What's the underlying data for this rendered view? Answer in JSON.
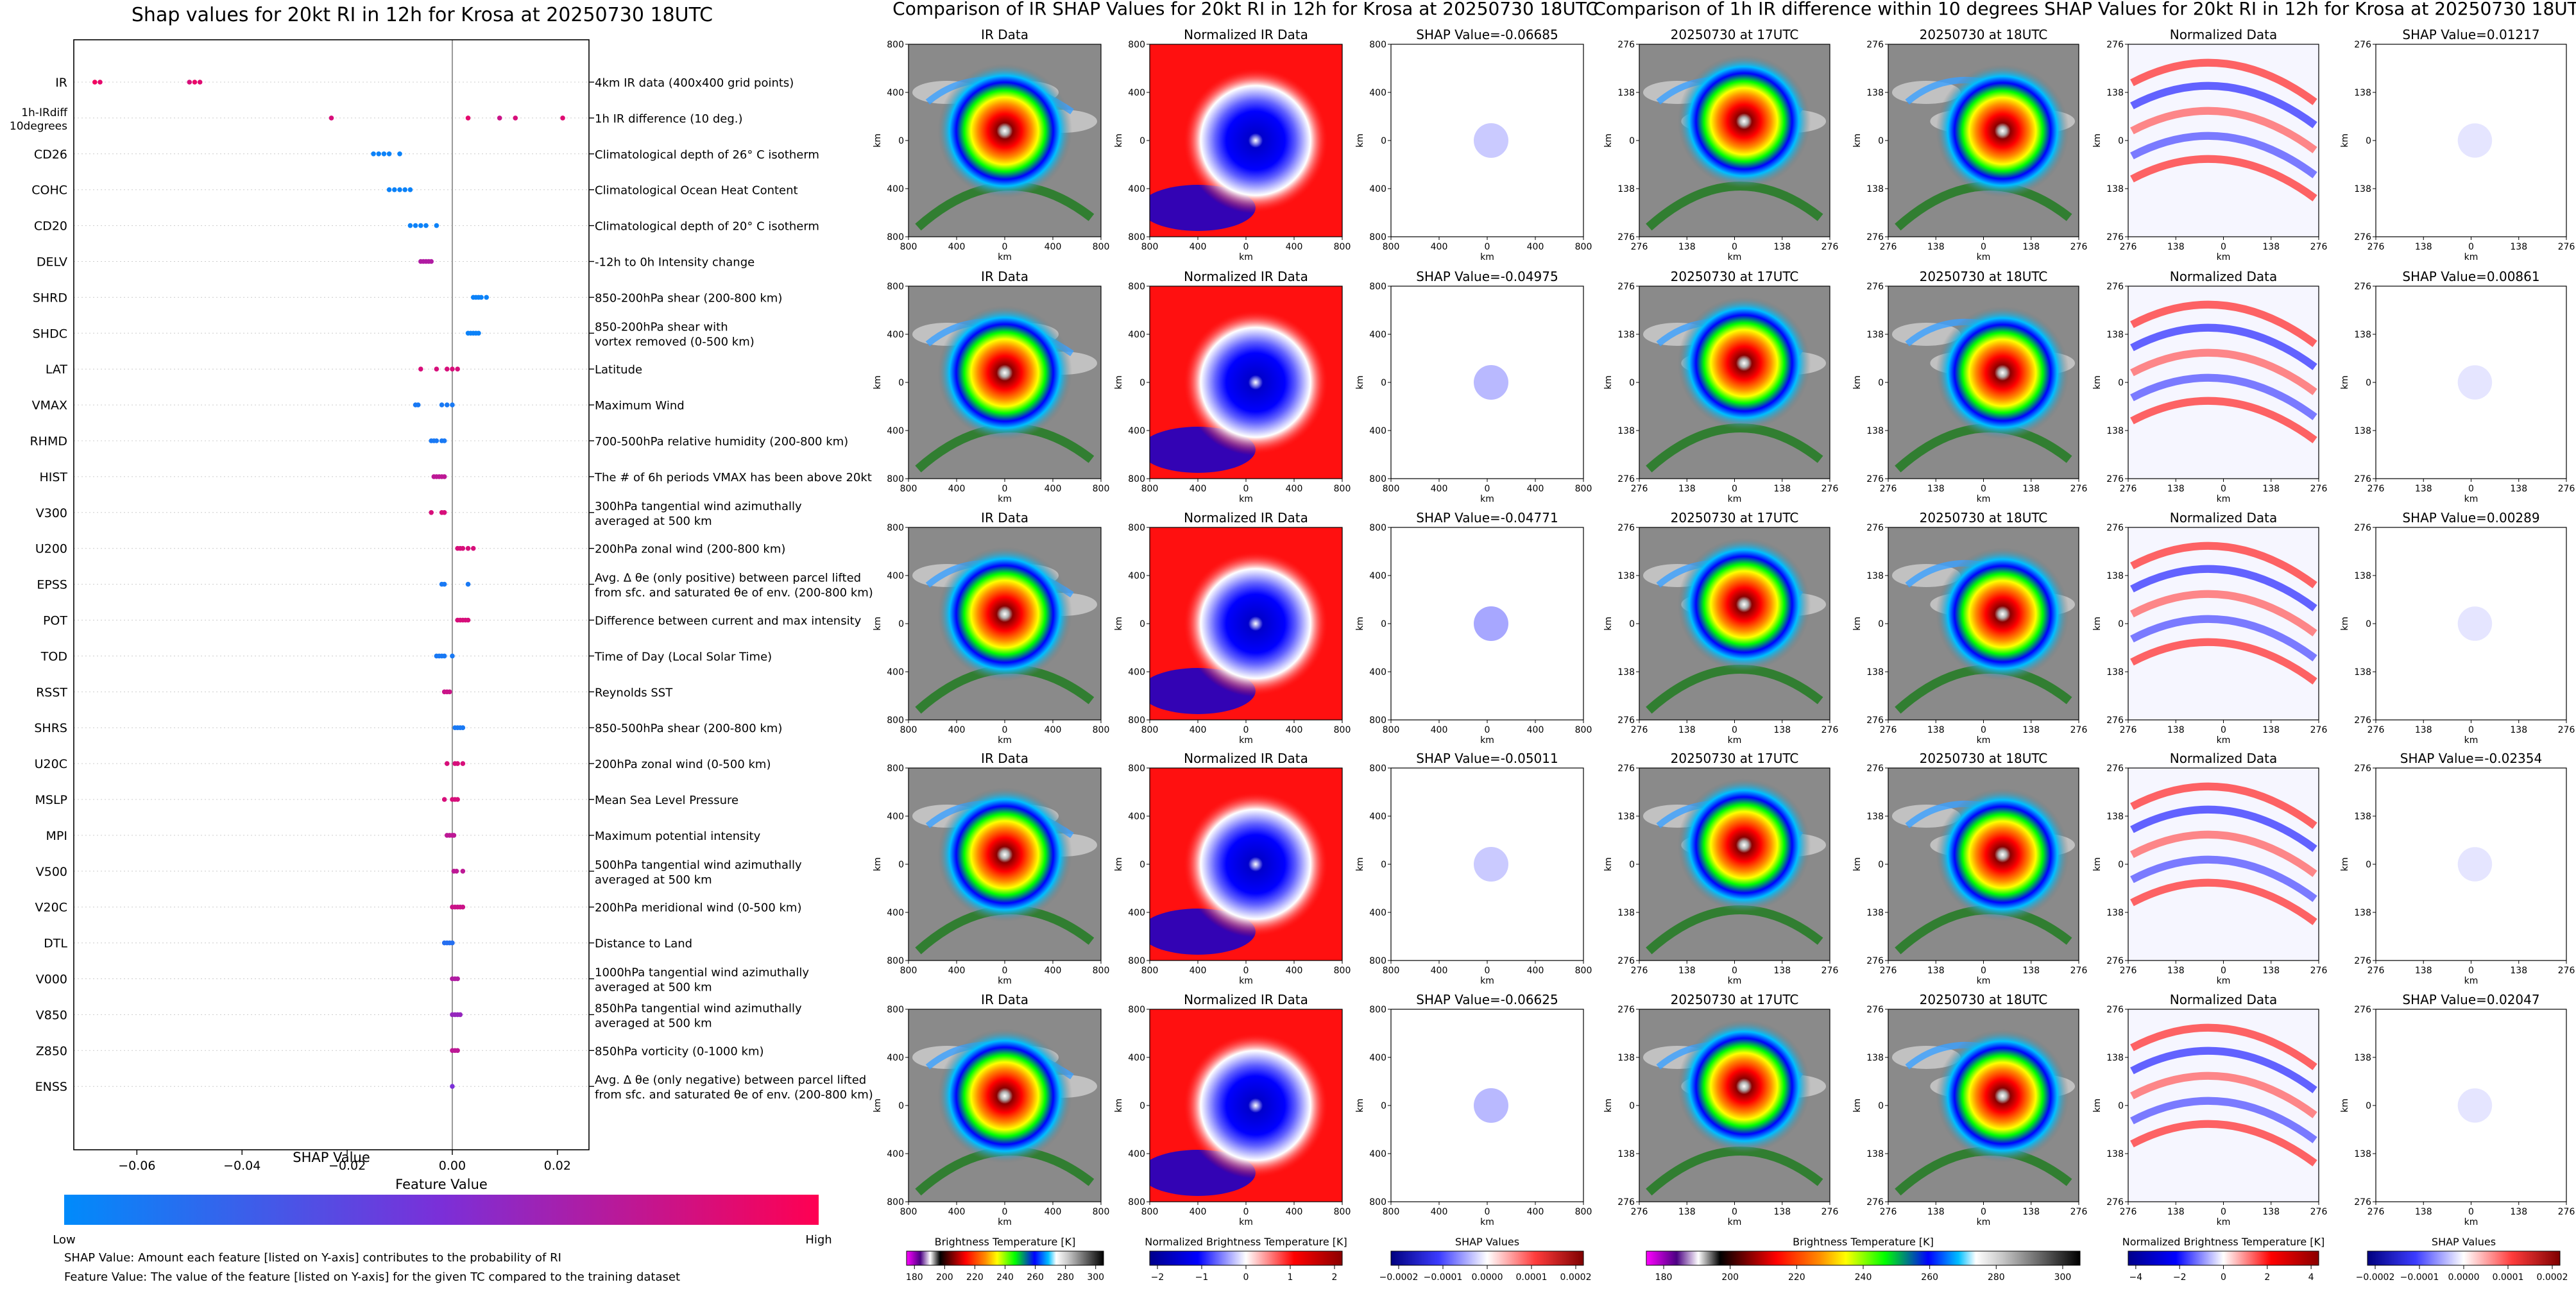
{
  "titles": {
    "left": "Shap values for 20kt RI in 12h for Krosa at 20250730 18UTC",
    "middle": "Comparison of IR SHAP Values for 20kt RI in 12h for Krosa at 20250730 18UTC",
    "right": "Comparison of 1h IR difference within 10 degrees SHAP Values for 20kt RI in 12h for Krosa at 20250730 18UTC"
  },
  "chart_data": [
    {
      "type": "scatter",
      "title": "Shap values for 20kt RI in 12h for Krosa at 20250730 18UTC",
      "xlabel": "SHAP Value",
      "xlim": [
        -0.072,
        0.026
      ],
      "xticks": [
        -0.06,
        -0.04,
        -0.02,
        0.0,
        0.02
      ],
      "xtick_labels": [
        "−0.06",
        "−0.04",
        "−0.02",
        "0.00",
        "0.02"
      ],
      "features": [
        {
          "name": "IR",
          "desc": "4km IR data (400x400 grid points)",
          "shap": [
            -0.068,
            -0.067,
            -0.05,
            -0.049,
            -0.048
          ],
          "fv": [
            0.95,
            0.9,
            0.85,
            0.92,
            0.88
          ]
        },
        {
          "name": "1h-IRdiff\n10degrees",
          "desc": "1h IR difference (10 deg.)",
          "shap": [
            -0.023,
            0.003,
            0.009,
            0.012,
            0.021
          ],
          "fv": [
            0.85,
            0.9,
            0.8,
            0.85,
            0.88
          ]
        },
        {
          "name": "CD26",
          "desc": "Climatological depth of 26° C isotherm",
          "shap": [
            -0.015,
            -0.014,
            -0.013,
            -0.012,
            -0.01
          ],
          "fv": [
            0.05,
            0.05,
            0.05,
            0.05,
            0.05
          ]
        },
        {
          "name": "COHC",
          "desc": "Climatological Ocean Heat Content",
          "shap": [
            -0.012,
            -0.011,
            -0.01,
            -0.009,
            -0.008
          ],
          "fv": [
            0.05,
            0.05,
            0.05,
            0.05,
            0.05
          ]
        },
        {
          "name": "CD20",
          "desc": "Climatological depth of 20° C isotherm",
          "shap": [
            -0.008,
            -0.007,
            -0.006,
            -0.005,
            -0.003
          ],
          "fv": [
            0.05,
            0.05,
            0.05,
            0.05,
            0.05
          ]
        },
        {
          "name": "DELV",
          "desc": "-12h to 0h Intensity change",
          "shap": [
            -0.006,
            -0.0055,
            -0.005,
            -0.0045,
            -0.004
          ],
          "fv": [
            0.7,
            0.7,
            0.7,
            0.7,
            0.7
          ]
        },
        {
          "name": "SHRD",
          "desc": "850-200hPa shear (200-800 km)",
          "shap": [
            0.004,
            0.0045,
            0.005,
            0.0055,
            0.0065
          ],
          "fv": [
            0.05,
            0.05,
            0.05,
            0.05,
            0.05
          ]
        },
        {
          "name": "SHDC",
          "desc": "850-200hPa shear with\nvortex removed (0-500 km)",
          "shap": [
            0.003,
            0.0035,
            0.004,
            0.0045,
            0.005
          ],
          "fv": [
            0.05,
            0.05,
            0.05,
            0.05,
            0.05
          ]
        },
        {
          "name": "LAT",
          "desc": "Latitude",
          "shap": [
            -0.006,
            -0.003,
            -0.001,
            0.0,
            0.001
          ],
          "fv": [
            0.85,
            0.85,
            0.85,
            0.85,
            0.85
          ]
        },
        {
          "name": "VMAX",
          "desc": "Maximum Wind",
          "shap": [
            -0.007,
            -0.0065,
            -0.002,
            -0.001,
            0.0
          ],
          "fv": [
            0.1,
            0.1,
            0.1,
            0.1,
            0.1
          ]
        },
        {
          "name": "RHMD",
          "desc": "700-500hPa relative humidity (200-800 km)",
          "shap": [
            -0.004,
            -0.0035,
            -0.003,
            -0.002,
            -0.0015
          ],
          "fv": [
            0.1,
            0.1,
            0.1,
            0.1,
            0.1
          ]
        },
        {
          "name": "HIST",
          "desc": "The # of 6h periods VMAX has been above 20kt",
          "shap": [
            -0.0035,
            -0.003,
            -0.0025,
            -0.002,
            -0.0015
          ],
          "fv": [
            0.75,
            0.75,
            0.75,
            0.75,
            0.75
          ]
        },
        {
          "name": "V300",
          "desc": "300hPa tangential wind azimuthally\naveraged at 500 km",
          "shap": [
            -0.004,
            -0.002,
            -0.0015
          ],
          "fv": [
            0.85,
            0.85,
            0.85
          ]
        },
        {
          "name": "U200",
          "desc": "200hPa zonal wind (200-800 km)",
          "shap": [
            0.001,
            0.0015,
            0.002,
            0.003,
            0.004
          ],
          "fv": [
            0.85,
            0.85,
            0.85,
            0.85,
            0.85
          ]
        },
        {
          "name": "EPSS",
          "desc": "Avg. Δ θe (only positive) between parcel lifted\nfrom sfc. and saturated θe of env. (200-800 km)",
          "shap": [
            -0.002,
            -0.0015,
            0.003
          ],
          "fv": [
            0.1,
            0.1,
            0.1
          ]
        },
        {
          "name": "POT",
          "desc": "Difference between current and max intensity",
          "shap": [
            0.001,
            0.0015,
            0.002,
            0.0025,
            0.003
          ],
          "fv": [
            0.85,
            0.85,
            0.85,
            0.85,
            0.85
          ]
        },
        {
          "name": "TOD",
          "desc": "Time of Day (Local Solar Time)",
          "shap": [
            -0.003,
            -0.0025,
            -0.002,
            -0.0015,
            0.0
          ],
          "fv": [
            0.1,
            0.1,
            0.1,
            0.1,
            0.1
          ]
        },
        {
          "name": "RSST",
          "desc": "Reynolds SST",
          "shap": [
            -0.0015,
            -0.001,
            -0.0005
          ],
          "fv": [
            0.8,
            0.8,
            0.8
          ]
        },
        {
          "name": "SHRS",
          "desc": "850-500hPa shear (200-800 km)",
          "shap": [
            0.0005,
            0.001,
            0.0015,
            0.002
          ],
          "fv": [
            0.1,
            0.1,
            0.1,
            0.1
          ]
        },
        {
          "name": "U20C",
          "desc": "200hPa zonal wind (0-500 km)",
          "shap": [
            -0.001,
            0.0005,
            0.001,
            0.002
          ],
          "fv": [
            0.85,
            0.85,
            0.85,
            0.85
          ]
        },
        {
          "name": "MSLP",
          "desc": "Mean Sea Level Pressure",
          "shap": [
            -0.0015,
            0.0,
            0.0005,
            0.001
          ],
          "fv": [
            0.85,
            0.85,
            0.85,
            0.85
          ]
        },
        {
          "name": "MPI",
          "desc": "Maximum potential intensity",
          "shap": [
            -0.001,
            -0.0005,
            0.0,
            0.0003
          ],
          "fv": [
            0.75,
            0.75,
            0.75,
            0.75
          ]
        },
        {
          "name": "V500",
          "desc": "500hPa tangential wind azimuthally\naveraged at 500 km",
          "shap": [
            0.0003,
            0.0008,
            0.002
          ],
          "fv": [
            0.75,
            0.75,
            0.75
          ]
        },
        {
          "name": "V20C",
          "desc": "200hPa meridional wind (0-500 km)",
          "shap": [
            0.0,
            0.0005,
            0.001,
            0.0015,
            0.002
          ],
          "fv": [
            0.8,
            0.8,
            0.8,
            0.8,
            0.8
          ]
        },
        {
          "name": "DTL",
          "desc": "Distance to Land",
          "shap": [
            -0.0015,
            -0.001,
            -0.0005,
            0.0
          ],
          "fv": [
            0.15,
            0.15,
            0.15,
            0.15
          ]
        },
        {
          "name": "V000",
          "desc": "1000hPa tangential wind azimuthally\naveraged at 500 km",
          "shap": [
            0.0,
            0.0005,
            0.001
          ],
          "fv": [
            0.7,
            0.7,
            0.7
          ]
        },
        {
          "name": "V850",
          "desc": "850hPa tangential wind azimuthally\naveraged at 500 km",
          "shap": [
            0.0,
            0.0005,
            0.001,
            0.0015
          ],
          "fv": [
            0.6,
            0.6,
            0.6,
            0.6
          ]
        },
        {
          "name": "Z850",
          "desc": "850hPa vorticity (0-1000 km)",
          "shap": [
            0.0,
            0.0005,
            0.001
          ],
          "fv": [
            0.75,
            0.75,
            0.75
          ]
        },
        {
          "name": "ENSS",
          "desc": "Avg. Δ θe (only negative) between parcel lifted\nfrom sfc. and saturated θe of env. (200-800 km)",
          "shap": [
            0.0
          ],
          "fv": [
            0.5
          ]
        }
      ],
      "colorbar": {
        "label": "Feature Value",
        "low": "Low",
        "high": "High",
        "colors": [
          "#008bfb",
          "#7b2fd8",
          "#ff0052"
        ]
      },
      "footnotes": [
        "SHAP Value: Amount each feature [listed on Y-axis] contributes to the probability of RI",
        "Feature Value: The value of the feature [listed on Y-axis] for the given TC compared to the training dataset"
      ]
    },
    {
      "type": "heatmap",
      "title": "Comparison of IR SHAP Values for 20kt RI in 12h for Krosa at 20250730 18UTC",
      "panel_titles": [
        "IR Data",
        "Normalized IR Data",
        "SHAP Value"
      ],
      "shap_values": [
        "-0.06685",
        "-0.04975",
        "-0.04771",
        "-0.05011",
        "-0.06625"
      ],
      "axis_label": "km",
      "axis_ticks": [
        "800",
        "400",
        "0",
        "400",
        "800"
      ],
      "colorbars": [
        {
          "label": "Brightness Temperature [K]",
          "ticks": [
            "180",
            "200",
            "220",
            "240",
            "260",
            "280",
            "300"
          ]
        },
        {
          "label": "Normalized Brightness Temperature [K]",
          "ticks": [
            "−2",
            "−1",
            "0",
            "1",
            "2"
          ]
        },
        {
          "label": "SHAP Values",
          "ticks": [
            "−0.0002",
            "−0.0001",
            "0.0000",
            "0.0001",
            "0.0002"
          ]
        }
      ]
    },
    {
      "type": "heatmap",
      "title": "Comparison of 1h IR difference within 10 degrees SHAP Values for 20kt RI in 12h for Krosa at 20250730 18UTC",
      "panel_titles": [
        "20250730 at 17UTC",
        "20250730 at 18UTC",
        "Normalized Data",
        "SHAP Value"
      ],
      "shap_values": [
        "0.01217",
        "0.00861",
        "0.00289",
        "-0.02354",
        "0.02047"
      ],
      "axis_label": "km",
      "axis_ticks": [
        "276",
        "138",
        "0",
        "138",
        "276"
      ],
      "colorbars": [
        {
          "label": "Brightness Temperature [K]",
          "ticks": [
            "180",
            "200",
            "220",
            "240",
            "260",
            "280",
            "300"
          ]
        },
        {
          "label": "Normalized Brightness Temperature [K]",
          "ticks": [
            "−4",
            "−2",
            "0",
            "2",
            "4"
          ]
        },
        {
          "label": "SHAP Values",
          "ticks": [
            "−0.0002",
            "−0.0001",
            "0.0000",
            "0.0001",
            "0.0002"
          ]
        }
      ]
    }
  ]
}
